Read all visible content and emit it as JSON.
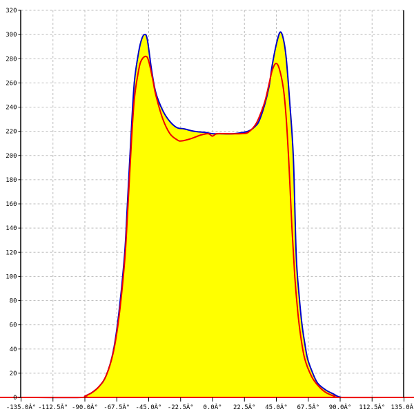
{
  "chart_data": {
    "type": "area",
    "title": "",
    "xlabel": "",
    "ylabel": "",
    "xlim": [
      -135,
      135
    ],
    "ylim": [
      0,
      320
    ],
    "grid": true,
    "x_ticks": [
      -135,
      -112.5,
      -90,
      -67.5,
      -45,
      -22.5,
      0,
      22.5,
      45,
      67.5,
      90,
      112.5,
      135
    ],
    "x_tick_labels": [
      "-135.0Â°",
      "-112.5Â°",
      "-90.0Â°",
      "-67.5Â°",
      "-45.0Â°",
      "-22.5Â°",
      "0.0Â°",
      "22.5Â°",
      "45.0Â°",
      "67.5Â°",
      "90.0Â°",
      "112.5Â°",
      "135.0Â°"
    ],
    "y_ticks": [
      0,
      20,
      40,
      60,
      80,
      100,
      120,
      140,
      160,
      180,
      200,
      220,
      240,
      260,
      280,
      300,
      320
    ],
    "y_tick_labels": [
      "0",
      "20",
      "40",
      "60",
      "80",
      "100",
      "120",
      "140",
      "160",
      "180",
      "200",
      "220",
      "240",
      "260",
      "280",
      "300",
      "320"
    ],
    "fill_color": "#ffff00",
    "series": [
      {
        "color": "#0000cc",
        "x": [
          -135,
          -92,
          -90,
          -85,
          -80,
          -75,
          -70,
          -66,
          -62,
          -60,
          -57,
          -55,
          -52,
          -50,
          -48,
          -46,
          -43,
          -40,
          -35,
          -30,
          -25,
          -20,
          -13,
          -5,
          0,
          5,
          15,
          25,
          30,
          33,
          37,
          40,
          42,
          45,
          47.7,
          50,
          52,
          54.5,
          57,
          59,
          61,
          63,
          65,
          67,
          70,
          74,
          80,
          85,
          88,
          91,
          93,
          135
        ],
        "y": [
          0,
          0,
          1,
          4,
          9,
          18,
          38,
          70,
          118,
          160,
          226,
          262,
          286,
          296,
          300,
          296,
          271,
          252,
          237,
          228,
          223,
          222,
          220,
          219,
          218,
          218,
          218,
          220,
          224,
          229,
          243,
          258,
          274,
          292,
          302,
          296,
          280,
          243,
          198,
          118,
          85,
          61,
          45,
          32,
          22,
          12,
          6,
          3,
          1,
          0,
          0,
          0
        ]
      },
      {
        "color": "#ee0000",
        "x": [
          -135,
          -92,
          -90,
          -85,
          -80,
          -75,
          -70,
          -66,
          -62,
          -60,
          -57,
          -55,
          -52,
          -50,
          -47,
          -45,
          -42,
          -40,
          -35,
          -30,
          -25,
          -22,
          -15,
          -8,
          -3,
          0,
          3,
          10,
          20,
          25,
          30,
          33,
          37,
          40,
          42,
          44.5,
          47,
          50,
          52,
          54,
          56,
          58,
          60,
          62,
          65,
          70,
          75,
          80,
          86,
          90,
          135
        ],
        "y": [
          0,
          0,
          1,
          4,
          9,
          18,
          37,
          66,
          112,
          150,
          215,
          248,
          271,
          279,
          282,
          278,
          262,
          250,
          230,
          218,
          213,
          212,
          214,
          217,
          218,
          216,
          218,
          218,
          218,
          219,
          225,
          232,
          245,
          260,
          270,
          276,
          272,
          255,
          230,
          190,
          140,
          100,
          72,
          52,
          32,
          17,
          9,
          4,
          1,
          0,
          0
        ]
      }
    ]
  }
}
